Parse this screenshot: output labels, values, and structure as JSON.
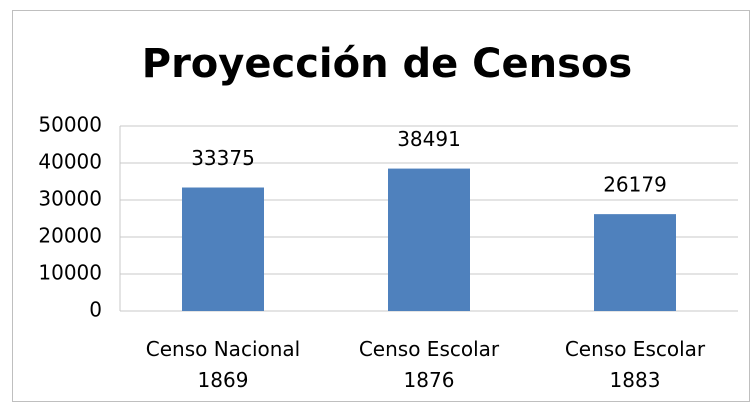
{
  "chart_data": {
    "type": "bar",
    "title": "Proyección de Censos",
    "categories": [
      "Censo Nacional 1869",
      "Censo Escolar 1876",
      "Censo Escolar 1883"
    ],
    "values": [
      33375,
      38491,
      26179
    ],
    "color": "#4f81bd",
    "ylim": [
      0,
      50000
    ],
    "yticks": [
      0,
      10000,
      20000,
      30000,
      40000,
      50000
    ],
    "grid": true
  }
}
